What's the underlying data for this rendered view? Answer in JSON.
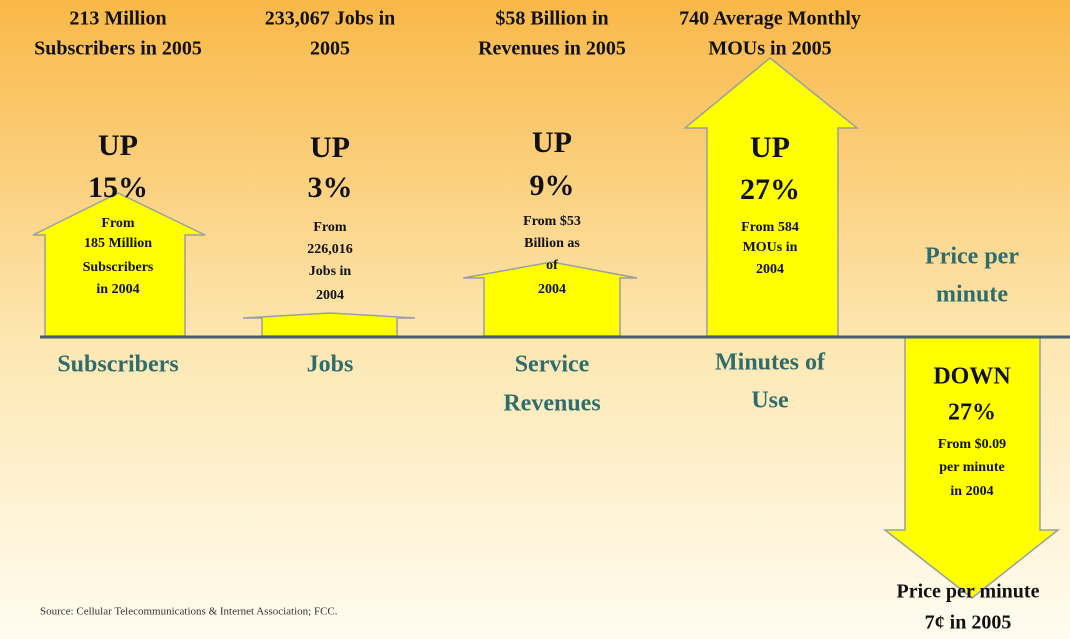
{
  "items": [
    {
      "headline": [
        "213 Million",
        "Subscribers in 2005"
      ],
      "direction": "UP",
      "change": "15%",
      "from": [
        "From",
        "185 Million",
        "Subscribers",
        "in 2004"
      ],
      "label": [
        "Subscribers"
      ]
    },
    {
      "headline": [
        "233,067 Jobs in",
        "2005"
      ],
      "direction": "UP",
      "change": "3%",
      "from": [
        "From",
        "226,016",
        "Jobs in",
        "2004"
      ],
      "label": [
        "Jobs"
      ]
    },
    {
      "headline": [
        "$58 Billion in",
        "Revenues in 2005"
      ],
      "direction": "UP",
      "change": "9%",
      "from": [
        "From $53",
        "Billion as",
        "of",
        "2004"
      ],
      "label": [
        "Service",
        "Revenues"
      ]
    },
    {
      "headline": [
        "740 Average Monthly",
        "MOUs in 2005"
      ],
      "direction": "UP",
      "change": "27%",
      "from": [
        "From 584",
        "MOUs in",
        "2004"
      ],
      "label": [
        "Minutes of",
        "Use"
      ]
    },
    {
      "label": [
        "Price per",
        "minute"
      ],
      "direction": "DOWN",
      "change": "27%",
      "from": [
        "From $0.09",
        "per minute",
        "in 2004"
      ],
      "headline": [
        "Price per minute",
        "7¢ in 2005"
      ]
    }
  ],
  "source": "Source: Cellular Telecommunications & Internet Association; FCC."
}
